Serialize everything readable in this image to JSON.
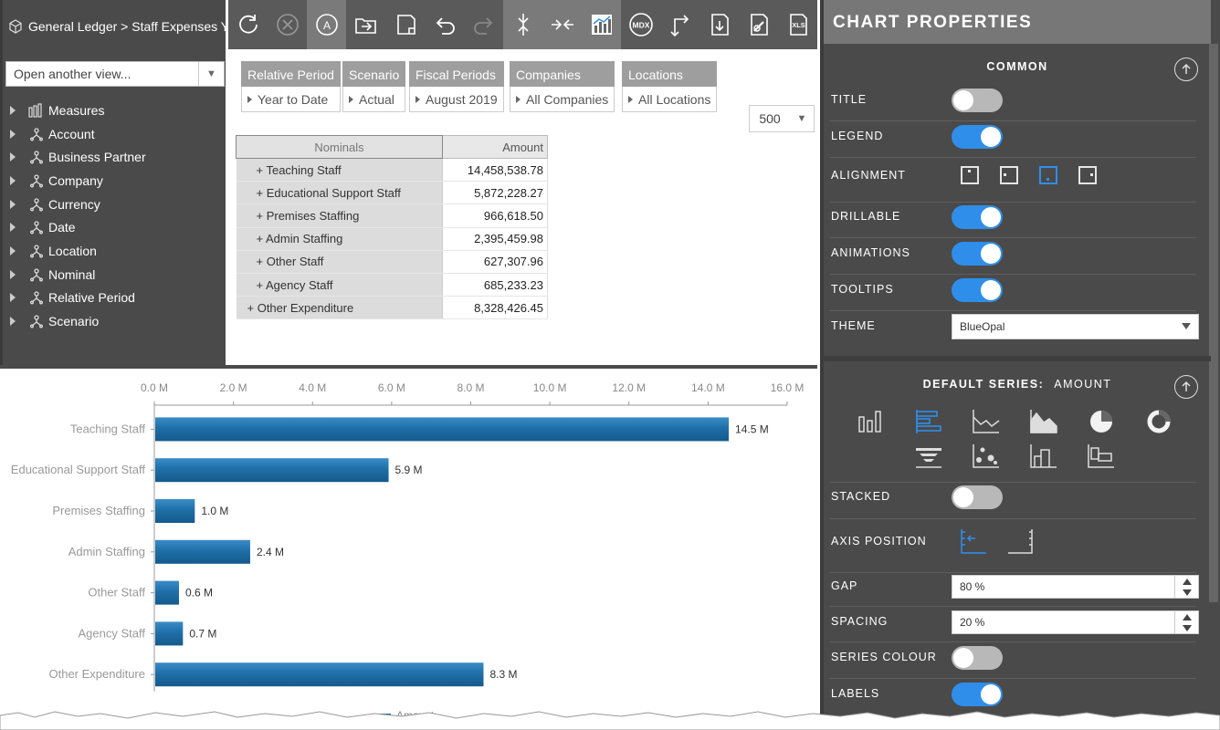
{
  "breadcrumb": "General Ledger > Staff Expenses YT",
  "view_selector": {
    "placeholder": "Open another view..."
  },
  "dimensions": [
    "Measures",
    "Account",
    "Business Partner",
    "Company",
    "Currency",
    "Date",
    "Location",
    "Nominal",
    "Relative Period",
    "Scenario"
  ],
  "toolbar": {
    "buttons": [
      {
        "name": "refresh-icon"
      },
      {
        "name": "cancel-icon"
      },
      {
        "name": "auto-icon",
        "label": "A"
      },
      {
        "name": "open-folder-icon"
      },
      {
        "name": "save-icon"
      },
      {
        "name": "undo-icon"
      },
      {
        "name": "redo-icon"
      },
      {
        "name": "expand-icon"
      },
      {
        "name": "collapse-icon"
      },
      {
        "name": "chart-icon"
      },
      {
        "name": "mdx-icon",
        "label": "MDX"
      },
      {
        "name": "swap-axes-icon"
      },
      {
        "name": "export-icon"
      },
      {
        "name": "edit-link-icon"
      },
      {
        "name": "xls-icon",
        "label": "XLS"
      }
    ]
  },
  "filters": [
    {
      "header": "Relative Period",
      "value": "Year to Date"
    },
    {
      "header": "Scenario",
      "value": "Actual"
    },
    {
      "header": "Fiscal Periods",
      "value": "August 2019"
    },
    {
      "header": "Companies",
      "value": "All Companies"
    },
    {
      "header": "Locations",
      "value": "All Locations"
    }
  ],
  "row_limit": "500",
  "grid": {
    "col_row": "Nominals",
    "col_value": "Amount",
    "rows": [
      {
        "label": "+ Teaching Staff",
        "value": "14,458,538.78"
      },
      {
        "label": "+ Educational Support Staff",
        "value": "5,872,228.27"
      },
      {
        "label": "+ Premises Staffing",
        "value": "966,618.50"
      },
      {
        "label": "+ Admin Staffing",
        "value": "2,395,459.98"
      },
      {
        "label": "+ Other Staff",
        "value": "627,307.96"
      },
      {
        "label": "+ Agency Staff",
        "value": "685,233.23"
      },
      {
        "label": "+ Other Expenditure",
        "value": "8,328,426.45"
      }
    ]
  },
  "chart_data": {
    "type": "bar",
    "orientation": "horizontal",
    "categories": [
      "Teaching Staff",
      "Educational Support Staff",
      "Premises Staffing",
      "Admin Staffing",
      "Other Staff",
      "Agency Staff",
      "Other Expenditure"
    ],
    "series": [
      {
        "name": "Amount",
        "values": [
          14.5,
          5.9,
          1.0,
          2.4,
          0.6,
          0.7,
          8.3
        ],
        "color": "#1f6fa8"
      }
    ],
    "data_labels": [
      "14.5 M",
      "5.9 M",
      "1.0 M",
      "2.4 M",
      "0.6 M",
      "0.7 M",
      "8.3 M"
    ],
    "xlim": [
      0,
      16
    ],
    "x_ticks": [
      "0.0 M",
      "2.0 M",
      "4.0 M",
      "6.0 M",
      "8.0 M",
      "10.0 M",
      "12.0 M",
      "14.0 M",
      "16.0 M"
    ],
    "axis_position": "top",
    "legend": "bottom",
    "grid": false
  },
  "properties": {
    "title": "CHART PROPERTIES",
    "common_header": "COMMON",
    "labels": {
      "title": "TITLE",
      "legend": "LEGEND",
      "alignment": "ALIGNMENT",
      "drillable": "DRILLABLE",
      "animations": "ANIMATIONS",
      "tooltips": "TOOLTIPS",
      "theme": "THEME"
    },
    "toggles": {
      "title": false,
      "legend": true,
      "drillable": true,
      "animations": true,
      "tooltips": true,
      "stacked": false,
      "series_colour": false,
      "labels": true
    },
    "theme_value": "BlueOpal",
    "series_header": "DEFAULT SERIES:",
    "series_name": "AMOUNT",
    "series_labels": {
      "stacked": "STACKED",
      "axis_position": "AXIS POSITION",
      "gap": "GAP",
      "spacing": "SPACING",
      "series_colour": "SERIES COLOUR",
      "labels": "LABELS"
    },
    "gap_value": "80 %",
    "spacing_value": "20 %",
    "chart_types": [
      "column-chart-icon",
      "bar-chart-icon",
      "line-chart-icon",
      "area-chart-icon",
      "pie-chart-icon",
      "donut-chart-icon",
      "funnel-chart-icon",
      "scatter-chart-icon",
      "step-chart-icon",
      "waterfall-chart-icon"
    ],
    "selected_chart_type": "bar-chart-icon",
    "accent": "#2f8eea"
  }
}
